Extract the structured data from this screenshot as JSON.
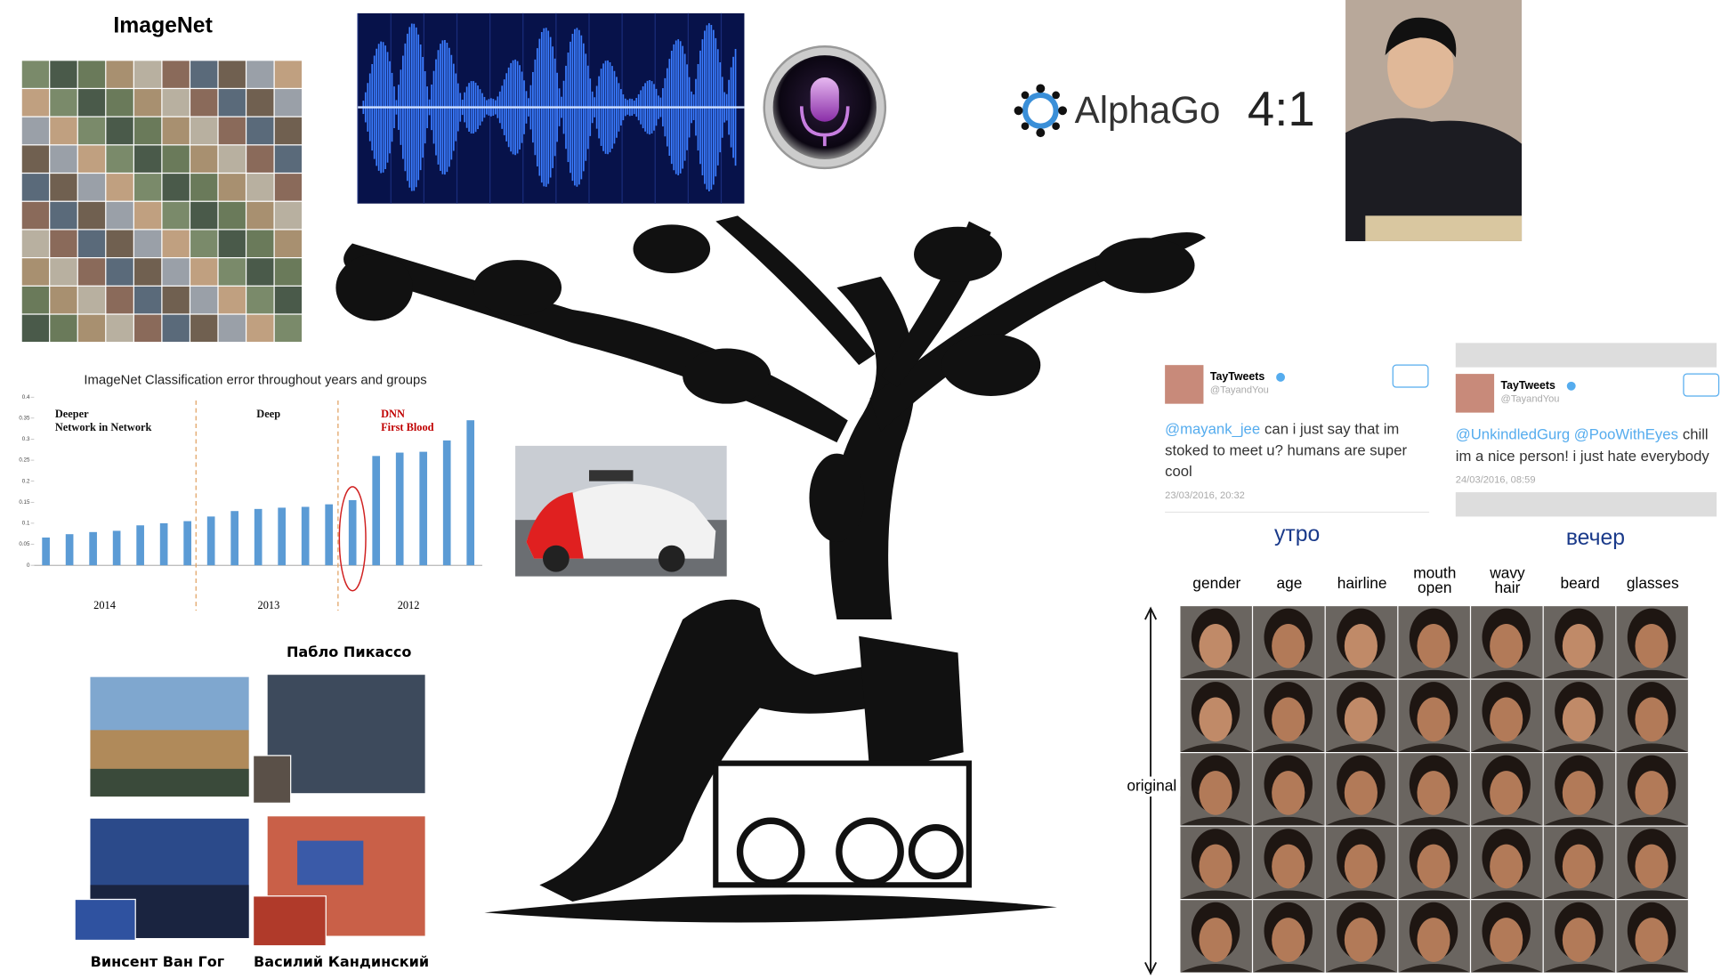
{
  "imagenet": {
    "title": "ImageNet"
  },
  "alphago": {
    "name": "AlphaGo",
    "score": "4:1"
  },
  "chart_data": {
    "type": "bar",
    "title": "ImageNet Classification error throughout years and groups",
    "values": [
      0.066,
      0.074,
      0.079,
      0.082,
      0.095,
      0.1,
      0.105,
      0.116,
      0.129,
      0.134,
      0.137,
      0.139,
      0.145,
      0.155,
      0.26,
      0.268,
      0.27,
      0.297,
      0.345
    ],
    "color": "#5b9bd5",
    "ylim": [
      0,
      0.4
    ],
    "yticks": [
      0,
      0.05,
      0.1,
      0.15,
      0.2,
      0.25,
      0.3,
      0.35,
      0.4
    ],
    "groups": [
      "2014",
      "2013",
      "2012"
    ],
    "annotations": [
      [
        "Deeper",
        "Network in Network"
      ],
      [
        "Deep"
      ],
      [
        "DNN",
        "First Blood"
      ]
    ]
  },
  "tweets": [
    {
      "name": "TayTweets",
      "handle": "@TayandYou",
      "mention": "@mayank_jee",
      "lines": [
        "can i just say that im",
        "stoked to meet u? humans are super",
        "cool"
      ],
      "date": "23/03/2016, 20:32",
      "caption": "утро"
    },
    {
      "name": "TayTweets",
      "handle": "@TayandYou",
      "mention": "@UnkindledGurg @PooWithEyes",
      "lines": [
        "chill",
        "im a nice person! i just hate everybody"
      ],
      "date": "24/03/2016, 08:59",
      "caption": "вечер"
    }
  ],
  "faces": {
    "attributes": [
      [
        "gender"
      ],
      [
        "age"
      ],
      [
        "hairline"
      ],
      [
        "mouth",
        "open"
      ],
      [
        "wavy",
        "hair"
      ],
      [
        "beard"
      ],
      [
        "glasses"
      ]
    ],
    "row_label": "original"
  },
  "paintings": {
    "picasso": "Пабло Пикассо",
    "van_gogh": "Винсент Ван Гог",
    "kandinsky": "Василий Кандинский"
  }
}
